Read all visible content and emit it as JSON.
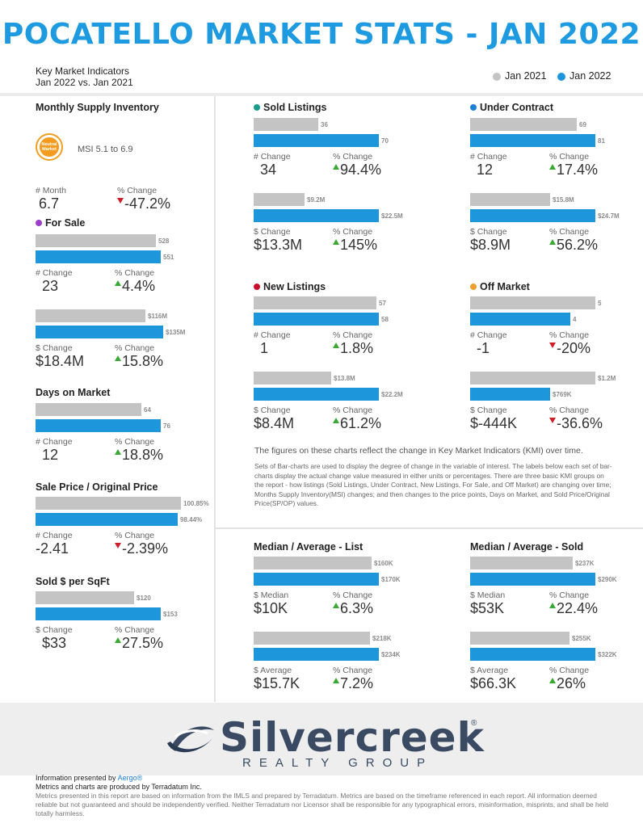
{
  "title": "POCATELLO MARKET STATS - JAN 2022",
  "header": {
    "kmi_title": "Key Market Indicators",
    "kmi_compare": "Jan 2022 vs. Jan 2021",
    "legend": [
      {
        "label": "Jan 2021",
        "color": "#c4c4c4"
      },
      {
        "label": "Jan 2022",
        "color": "#1e96dc"
      }
    ]
  },
  "colors": {
    "prior": "#c4c4c4",
    "current": "#1e96dc",
    "up": "#3aa834",
    "down": "#cc1f2a"
  },
  "msi": {
    "title": "Monthly Supply Inventory",
    "badge_text": "Neutral Market",
    "range": "MSI 5.1 to 6.9",
    "label_a": "# Month",
    "value_a": "6.7",
    "label_b": "% Change",
    "value_b": "-47.2%",
    "dir_b": "down"
  },
  "for_sale": {
    "title": "For Sale",
    "dot_color": "#9b3fc6",
    "count": {
      "prior": 528,
      "current": 551,
      "prior_label": "528",
      "current_label": "551",
      "label_a": "# Change",
      "value_a": "23",
      "label_b": "% Change",
      "value_b": "4.4%",
      "dir_b": "up"
    },
    "volume": {
      "prior": 116,
      "current": 135,
      "prior_label": "$116M",
      "current_label": "$135M",
      "label_a": "$ Change",
      "value_a": "$18.4M",
      "label_b": "% Change",
      "value_b": "15.8%",
      "dir_b": "up"
    }
  },
  "dom": {
    "title": "Days on Market",
    "prior": 64,
    "current": 76,
    "prior_label": "64",
    "current_label": "76",
    "label_a": "# Change",
    "value_a": "12",
    "label_b": "% Change",
    "value_b": "18.8%",
    "dir_b": "up"
  },
  "spop": {
    "title": "Sale Price / Original Price",
    "prior": 100.85,
    "current": 98.44,
    "prior_label": "100.85%",
    "current_label": "98.44%",
    "label_a": "# Change",
    "value_a": "-2.41",
    "label_b": "% Change",
    "value_b": "-2.39%",
    "dir_b": "down"
  },
  "sqft": {
    "title": "Sold $ per SqFt",
    "prior": 120,
    "current": 153,
    "prior_label": "$120",
    "current_label": "$153",
    "label_a": "$ Change",
    "value_a": "$33",
    "label_b": "% Change",
    "value_b": "27.5%",
    "dir_b": "up"
  },
  "sold": {
    "title": "Sold Listings",
    "dot_color": "#1a9c8c",
    "count": {
      "prior": 36,
      "current": 70,
      "prior_label": "36",
      "current_label": "70",
      "label_a": "# Change",
      "value_a": "34",
      "label_b": "% Change",
      "value_b": "94.4%",
      "dir_b": "up"
    },
    "volume": {
      "prior": 9.2,
      "current": 22.5,
      "prior_label": "$9.2M",
      "current_label": "$22.5M",
      "label_a": "$ Change",
      "value_a": "$13.3M",
      "label_b": "% Change",
      "value_b": "145%",
      "dir_b": "up"
    }
  },
  "under_contract": {
    "title": "Under Contract",
    "dot_color": "#1e7fd6",
    "count": {
      "prior": 69,
      "current": 81,
      "prior_label": "69",
      "current_label": "81",
      "label_a": "# Change",
      "value_a": "12",
      "label_b": "% Change",
      "value_b": "17.4%",
      "dir_b": "up"
    },
    "volume": {
      "prior": 15.8,
      "current": 24.7,
      "prior_label": "$15.8M",
      "current_label": "$24.7M",
      "label_a": "$ Change",
      "value_a": "$8.9M",
      "label_b": "% Change",
      "value_b": "56.2%",
      "dir_b": "up"
    }
  },
  "new_listings": {
    "title": "New Listings",
    "dot_color": "#c8102e",
    "count": {
      "prior": 57,
      "current": 58,
      "prior_label": "57",
      "current_label": "58",
      "label_a": "# Change",
      "value_a": "1",
      "label_b": "% Change",
      "value_b": "1.8%",
      "dir_b": "up"
    },
    "volume": {
      "prior": 13.8,
      "current": 22.2,
      "prior_label": "$13.8M",
      "current_label": "$22.2M",
      "label_a": "$ Change",
      "value_a": "$8.4M",
      "label_b": "% Change",
      "value_b": "61.2%",
      "dir_b": "up"
    }
  },
  "off_market": {
    "title": "Off Market",
    "dot_color": "#f0a030",
    "count": {
      "prior": 5,
      "current": 4,
      "prior_label": "5",
      "current_label": "4",
      "label_a": "# Change",
      "value_a": "-1",
      "label_b": "% Change",
      "value_b": "-20%",
      "dir_b": "down"
    },
    "volume": {
      "prior": 1.2,
      "current": 0.769,
      "prior_label": "$1.2M",
      "current_label": "$769K",
      "label_a": "$ Change",
      "value_a": "$-444K",
      "label_b": "% Change",
      "value_b": "-36.6%",
      "dir_b": "down"
    }
  },
  "explain": {
    "line1": "The figures on these charts reflect the change in Key Market Indicators (KMI) over time.",
    "line2": "Sets of Bar-charts are used to display the degree of change in the variable of interest. The labels below each set of bar-charts display the actual change value measured in either units or percentages. There are three basic KMI groups on the report - how listings (Sold Listings, Under Contract, New Listings, For Sale, and Off Market) are changing over time; Months Supply Inventory(MSI) changes; and then changes to the price points, Days on Market, and Sold Price/Original Price(SP/OP) values."
  },
  "list_prices": {
    "title": "Median / Average - List",
    "median": {
      "prior": 160,
      "current": 170,
      "prior_label": "$160K",
      "current_label": "$170K",
      "label_a": "$ Median",
      "value_a": "$10K",
      "label_b": "% Change",
      "value_b": "6.3%",
      "dir_b": "up"
    },
    "average": {
      "prior": 218,
      "current": 234,
      "prior_label": "$218K",
      "current_label": "$234K",
      "label_a": "$ Average",
      "value_a": "$15.7K",
      "label_b": "% Change",
      "value_b": "7.2%",
      "dir_b": "up"
    }
  },
  "sold_prices": {
    "title": "Median / Average - Sold",
    "median": {
      "prior": 237,
      "current": 290,
      "prior_label": "$237K",
      "current_label": "$290K",
      "label_a": "$ Median",
      "value_a": "$53K",
      "label_b": "% Change",
      "value_b": "22.4%",
      "dir_b": "up"
    },
    "average": {
      "prior": 255,
      "current": 322,
      "prior_label": "$255K",
      "current_label": "$322K",
      "label_a": "$ Average",
      "value_a": "$66.3K",
      "label_b": "% Change",
      "value_b": "26%",
      "dir_b": "up"
    }
  },
  "logo": {
    "brand": "Silvercreek",
    "registered": "®",
    "tagline": "REALTY GROUP"
  },
  "footer": {
    "presented_prefix": "Information presented by ",
    "presented_link": "Aergo®",
    "produced": "Metrics and charts are produced by Terradatum Inc.",
    "disclaimer": "Metrics presented in this report are based on information from the IMLS and prepared by Terradatum. Metrics are based on the timeframe referenced in each report. All information deemed reliable but not guaranteed and should be independently verified. Neither Terradatum nor Licensor shall be responsible for any typographical errors, misinformation, misprints, and shall be held totally harmless."
  }
}
